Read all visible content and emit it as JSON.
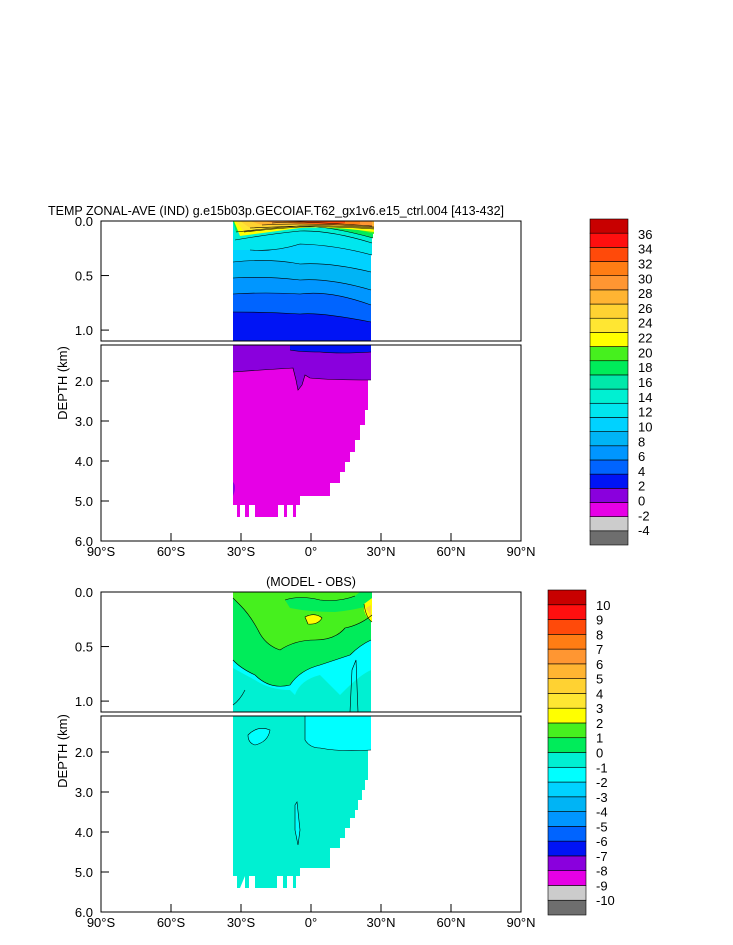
{
  "colors": {
    "upper_levels": [
      "#6e6e6e",
      "#cccccc",
      "#e600e6",
      "#8a00dd",
      "#0014f5",
      "#0064ff",
      "#0096ff",
      "#00b4f5",
      "#00d2ff",
      "#00e6ee",
      "#00f0d2",
      "#00e8aa",
      "#00ec5a",
      "#46f01e",
      "#ffff00",
      "#ffe632",
      "#ffd232",
      "#ffb432",
      "#ff9632",
      "#ff7d14",
      "#ff4a0a",
      "#ff0f0f",
      "#c80000"
    ],
    "diff_levels": [
      "#6e6e6e",
      "#cccccc",
      "#e600e6",
      "#8a00dd",
      "#0014f5",
      "#0064ff",
      "#0096ff",
      "#00b4f5",
      "#00d2ff",
      "#00ffff",
      "#00f0d2",
      "#00ec5a",
      "#46f01e",
      "#ffff00",
      "#ffe632",
      "#ffd232",
      "#ffb432",
      "#ff9632",
      "#ff7d14",
      "#ff4a0a",
      "#ff0f0f",
      "#c80000"
    ]
  },
  "chart_data": [
    {
      "type": "contour",
      "title": "TEMP ZONAL-AVE (IND) g.e15b03p.GECOIAF.T62_gx1v6.e15_ctrl.004 [413-432]",
      "ylabel": "DEPTH (km)",
      "x_ticks": [
        "90°S",
        "60°S",
        "30°S",
        "0°",
        "30°N",
        "60°N",
        "90°N"
      ],
      "y_ticks_upper": [
        "0.0",
        "0.5",
        "1.0"
      ],
      "y_ticks_lower": [
        "2.0",
        "3.0",
        "4.0",
        "5.0",
        "6.0"
      ],
      "xlim": [
        -90,
        90
      ],
      "ylim": [
        0,
        6
      ],
      "colorbar_labels": [
        "36",
        "34",
        "32",
        "30",
        "28",
        "26",
        "24",
        "22",
        "20",
        "18",
        "16",
        "14",
        "12",
        "10",
        "8",
        "6",
        "4",
        "2",
        "0",
        "-2",
        "-4"
      ]
    },
    {
      "type": "contour",
      "title": "(MODEL - OBS)",
      "ylabel": "DEPTH (km)",
      "x_ticks": [
        "90°S",
        "60°S",
        "30°S",
        "0°",
        "30°N",
        "60°N",
        "90°N"
      ],
      "y_ticks_upper": [
        "0.0",
        "0.5",
        "1.0"
      ],
      "y_ticks_lower": [
        "2.0",
        "3.0",
        "4.0",
        "5.0",
        "6.0"
      ],
      "xlim": [
        -90,
        90
      ],
      "ylim": [
        0,
        6
      ],
      "colorbar_labels": [
        "10",
        "9",
        "8",
        "7",
        "6",
        "5",
        "4",
        "3",
        "2",
        "1",
        "0",
        "-1",
        "-2",
        "-3",
        "-4",
        "-5",
        "-6",
        "-7",
        "-8",
        "-9",
        "-10"
      ]
    }
  ]
}
